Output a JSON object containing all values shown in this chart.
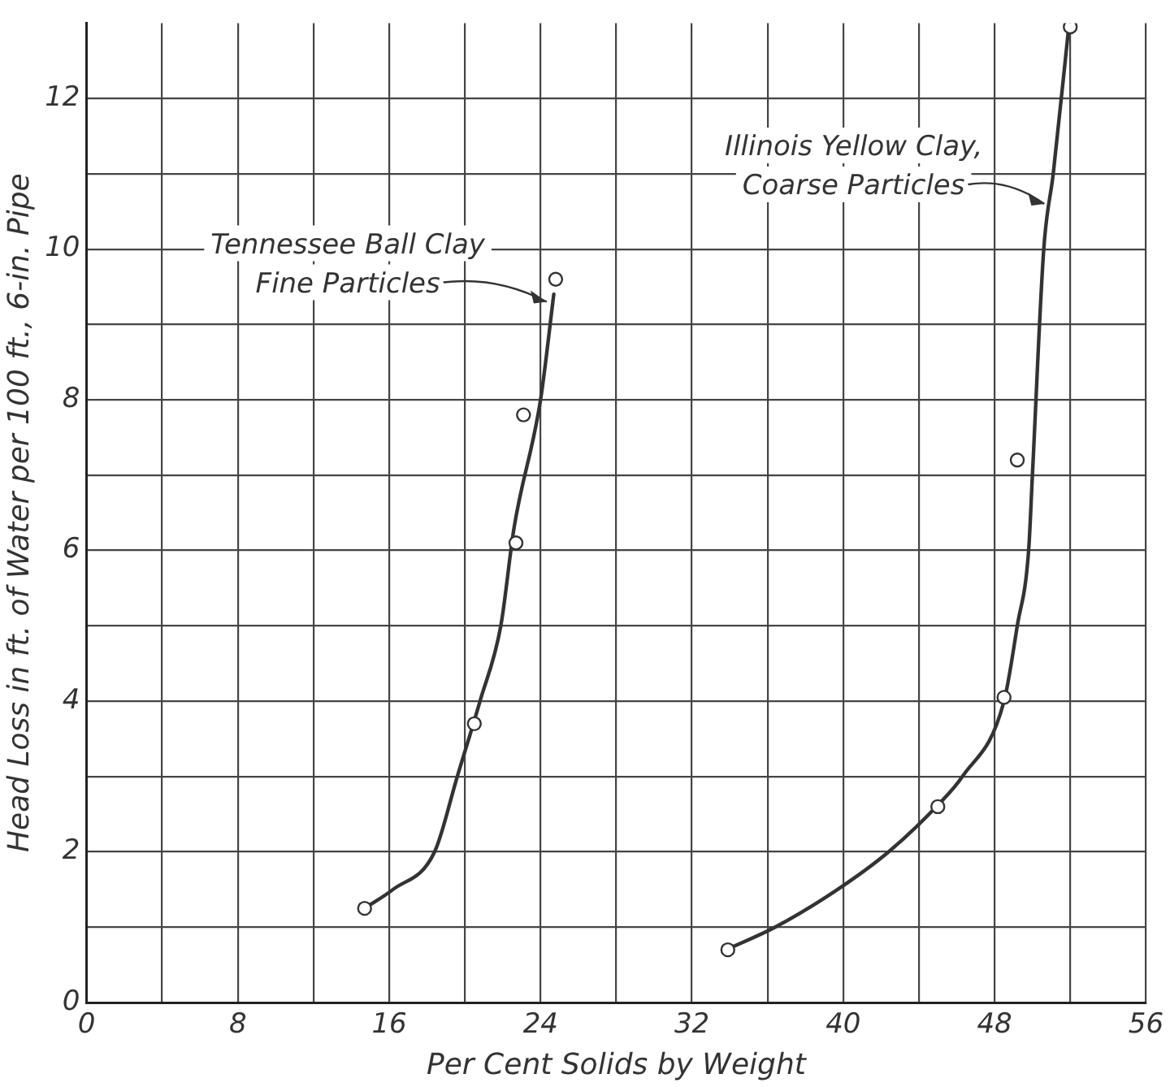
{
  "chart_data": {
    "type": "scatter",
    "xlabel": "Per Cent Solids by Weight",
    "ylabel": "Head Loss in ft. of Water per 100 ft., 6-in. Pipe",
    "xlim": [
      0,
      56
    ],
    "ylim": [
      0,
      13
    ],
    "xticks": [
      0,
      {
        "value": 4,
        "label": null
      },
      8,
      {
        "value": 12,
        "label": null
      },
      16,
      {
        "value": 20,
        "label": null
      },
      24,
      {
        "value": 28,
        "label": null
      },
      32,
      {
        "value": 36,
        "label": null
      },
      40,
      {
        "value": 44,
        "label": null
      },
      48,
      {
        "value": 52,
        "label": null
      },
      56
    ],
    "yticks": [
      0,
      {
        "value": 1,
        "label": null
      },
      2,
      {
        "value": 3,
        "label": null
      },
      4,
      {
        "value": 5,
        "label": null
      },
      6,
      {
        "value": 7,
        "label": null
      },
      8,
      {
        "value": 9,
        "label": null
      },
      10,
      {
        "value": 11,
        "label": null
      },
      12
    ],
    "grid": true,
    "legend": false,
    "series": [
      {
        "marker": "circle",
        "color": "#333333",
        "x": [
          14.7,
          20.5,
          22.7,
          23.1,
          24.8
        ],
        "values": [
          1.25,
          3.7,
          6.1,
          7.8,
          9.6
        ]
      },
      {
        "marker": "circle",
        "color": "#333333",
        "x": [
          33.9,
          45.0,
          48.5,
          49.2,
          52.0
        ],
        "values": [
          0.7,
          2.6,
          4.05,
          7.2,
          12.95
        ]
      },
      {
        "type": "line",
        "marker": "none",
        "line_style": "solid",
        "color": "#333333",
        "x": [
          14.7,
          16.2,
          18.4,
          19.6,
          20.8,
          21.9,
          22.6,
          24.0,
          24.7
        ],
        "values": [
          1.25,
          1.5,
          2,
          3,
          4,
          5,
          6.3,
          8,
          9.4
        ]
      },
      {
        "type": "line",
        "marker": "none",
        "line_style": "solid",
        "color": "#333333",
        "x": [
          33.9,
          36.4,
          39.7,
          42.4,
          45.0,
          46.3,
          48.5,
          49.2,
          49.8,
          50.0,
          50.6,
          51.1,
          51.9
        ],
        "values": [
          0.71,
          1,
          1.5,
          2,
          2.62,
          3,
          4,
          5,
          6,
          7,
          10,
          11,
          12.9
        ]
      }
    ],
    "annotations": [
      {
        "text": "Tennessee Ball Clay\nFine Particles",
        "x": 24.5,
        "y": 9.3
      },
      {
        "text": "Illinois Yellow Clay,\nCoarse Particles",
        "x": 50.8,
        "y": 10.6
      }
    ]
  }
}
